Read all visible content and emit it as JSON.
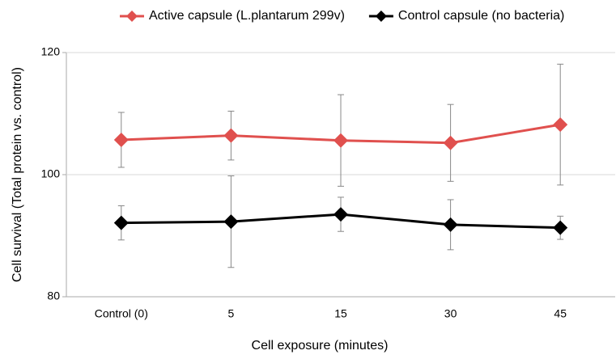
{
  "chart_data": {
    "type": "line",
    "xlabel": "Cell exposure (minutes)",
    "ylabel": "Cell survival (Total protein vs. control)",
    "categories": [
      "Control (0)",
      "5",
      "15",
      "30",
      "45"
    ],
    "series": [
      {
        "name": "Active capsule (L.plantarum 299v)",
        "color": "#e0504e",
        "values": [
          105.7,
          106.4,
          105.6,
          105.2,
          108.2
        ],
        "errors": [
          4.5,
          4,
          7.5,
          6.3,
          9.9
        ]
      },
      {
        "name": "Control capsule (no bacteria)",
        "color": "#000000",
        "values": [
          92.1,
          92.3,
          93.5,
          91.8,
          91.3
        ],
        "errors": [
          2.8,
          7.5,
          2.8,
          4.1,
          1.9
        ]
      }
    ],
    "ylim": [
      80,
      120
    ],
    "yticks": [
      80,
      100,
      120
    ],
    "grid": true,
    "legend": "top"
  }
}
